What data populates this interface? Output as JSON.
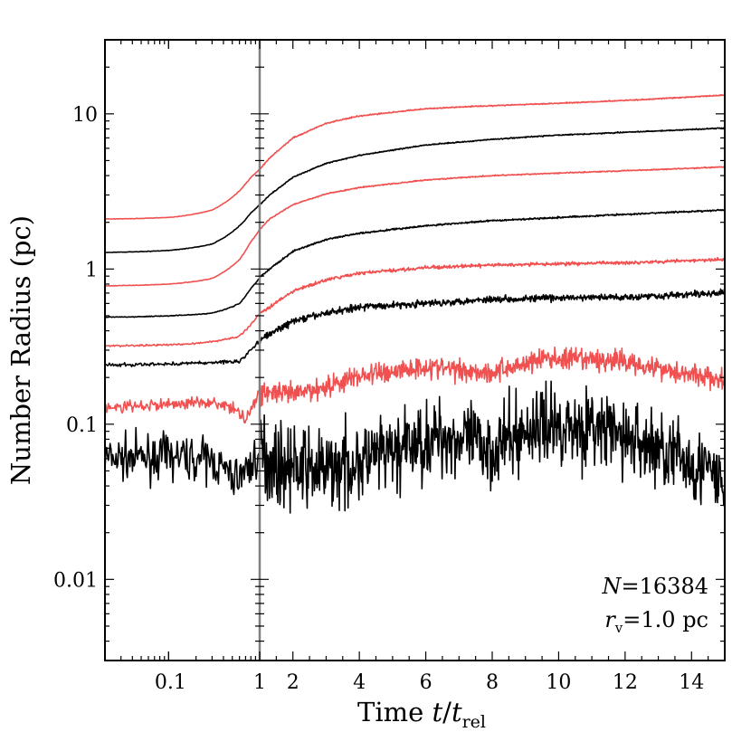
{
  "chart_data": {
    "type": "line",
    "title": "",
    "xlabel": {
      "prefix": "Time ",
      "t": "t",
      "slash": "/",
      "t2": "t",
      "sub": "rel"
    },
    "ylabel": "Number Radius (pc)",
    "x_scale": "log (t < 1), linear (t ≥ 1)",
    "xlim": [
      0.02,
      15
    ],
    "ylim": [
      0.003,
      30
    ],
    "y_scale": "log",
    "x_ticks_log": [
      {
        "v": 0.1,
        "label": "0.1"
      },
      {
        "v": 1,
        "label": "1"
      }
    ],
    "x_ticks_lin": [
      {
        "v": 2,
        "label": "2"
      },
      {
        "v": 4,
        "label": "4"
      },
      {
        "v": 6,
        "label": "6"
      },
      {
        "v": 8,
        "label": "8"
      },
      {
        "v": 10,
        "label": "10"
      },
      {
        "v": 12,
        "label": "12"
      },
      {
        "v": 14,
        "label": "14"
      }
    ],
    "y_ticks": [
      {
        "v": 0.01,
        "label": "0.01"
      },
      {
        "v": 0.1,
        "label": "0.1"
      },
      {
        "v": 1,
        "label": "1"
      },
      {
        "v": 10,
        "label": "10"
      }
    ],
    "vertical_line_at": 1,
    "annotation": {
      "n_label": "N",
      "n_eq": "=",
      "n_value": "16384",
      "r_label": "r",
      "r_sub": "v",
      "r_eq": "=",
      "r_value": "1.0 pc"
    },
    "series": [
      {
        "name": "r1",
        "color": "#000000",
        "noise": 0.28,
        "pts": [
          [
            0.02,
            0.06
          ],
          [
            0.1,
            0.062
          ],
          [
            0.3,
            0.058
          ],
          [
            0.5,
            0.045
          ],
          [
            0.7,
            0.05
          ],
          [
            1,
            0.066
          ],
          [
            1.5,
            0.055
          ],
          [
            3,
            0.05
          ],
          [
            5,
            0.065
          ],
          [
            6.5,
            0.085
          ],
          [
            8,
            0.07
          ],
          [
            9.5,
            0.1
          ],
          [
            11,
            0.095
          ],
          [
            13,
            0.07
          ],
          [
            14.5,
            0.05
          ],
          [
            15,
            0.038
          ]
        ]
      },
      {
        "name": "r2",
        "color": "#f05050",
        "noise": 0.08,
        "pts": [
          [
            0.02,
            0.128
          ],
          [
            0.1,
            0.135
          ],
          [
            0.3,
            0.14
          ],
          [
            0.5,
            0.125
          ],
          [
            0.7,
            0.11
          ],
          [
            1,
            0.16
          ],
          [
            1.3,
            0.16
          ],
          [
            2,
            0.155
          ],
          [
            3,
            0.175
          ],
          [
            4,
            0.205
          ],
          [
            6,
            0.235
          ],
          [
            8,
            0.215
          ],
          [
            9.5,
            0.265
          ],
          [
            12,
            0.255
          ],
          [
            13.5,
            0.22
          ],
          [
            15,
            0.19
          ]
        ]
      },
      {
        "name": "r3",
        "color": "#000000",
        "noise": 0.025,
        "pts": [
          [
            0.02,
            0.24
          ],
          [
            0.1,
            0.245
          ],
          [
            0.3,
            0.25
          ],
          [
            0.6,
            0.255
          ],
          [
            0.8,
            0.3
          ],
          [
            1,
            0.35
          ],
          [
            1.3,
            0.38
          ],
          [
            2,
            0.46
          ],
          [
            3,
            0.52
          ],
          [
            4,
            0.57
          ],
          [
            6,
            0.6
          ],
          [
            8,
            0.64
          ],
          [
            10,
            0.65
          ],
          [
            12,
            0.66
          ],
          [
            15,
            0.7
          ]
        ]
      },
      {
        "name": "r4",
        "color": "#f05050",
        "noise": 0.012,
        "pts": [
          [
            0.02,
            0.32
          ],
          [
            0.1,
            0.325
          ],
          [
            0.3,
            0.34
          ],
          [
            0.6,
            0.37
          ],
          [
            0.8,
            0.44
          ],
          [
            1,
            0.52
          ],
          [
            1.3,
            0.57
          ],
          [
            2,
            0.72
          ],
          [
            3,
            0.85
          ],
          [
            4,
            0.94
          ],
          [
            6,
            1.02
          ],
          [
            8,
            1.06
          ],
          [
            10,
            1.08
          ],
          [
            12,
            1.1
          ],
          [
            15,
            1.15
          ]
        ]
      },
      {
        "name": "r5",
        "color": "#000000",
        "noise": 0.006,
        "pts": [
          [
            0.02,
            0.49
          ],
          [
            0.1,
            0.5
          ],
          [
            0.3,
            0.52
          ],
          [
            0.6,
            0.6
          ],
          [
            0.8,
            0.75
          ],
          [
            1,
            0.88
          ],
          [
            1.3,
            1.0
          ],
          [
            2,
            1.3
          ],
          [
            3,
            1.55
          ],
          [
            4,
            1.7
          ],
          [
            6,
            1.9
          ],
          [
            8,
            2.05
          ],
          [
            10,
            2.15
          ],
          [
            12,
            2.25
          ],
          [
            15,
            2.4
          ]
        ]
      },
      {
        "name": "r6",
        "color": "#f05050",
        "noise": 0.004,
        "pts": [
          [
            0.02,
            0.78
          ],
          [
            0.1,
            0.8
          ],
          [
            0.3,
            0.87
          ],
          [
            0.6,
            1.15
          ],
          [
            0.8,
            1.5
          ],
          [
            1,
            1.8
          ],
          [
            1.3,
            2.1
          ],
          [
            2,
            2.6
          ],
          [
            3,
            3.05
          ],
          [
            4,
            3.35
          ],
          [
            6,
            3.75
          ],
          [
            8,
            4.0
          ],
          [
            10,
            4.15
          ],
          [
            12,
            4.3
          ],
          [
            15,
            4.55
          ]
        ]
      },
      {
        "name": "r7",
        "color": "#000000",
        "noise": 0.004,
        "pts": [
          [
            0.02,
            1.28
          ],
          [
            0.1,
            1.32
          ],
          [
            0.3,
            1.45
          ],
          [
            0.6,
            1.9
          ],
          [
            0.8,
            2.3
          ],
          [
            1,
            2.6
          ],
          [
            1.3,
            3.0
          ],
          [
            2,
            3.9
          ],
          [
            3,
            4.8
          ],
          [
            4,
            5.4
          ],
          [
            6,
            6.3
          ],
          [
            8,
            6.85
          ],
          [
            10,
            7.3
          ],
          [
            12,
            7.6
          ],
          [
            15,
            8.1
          ]
        ]
      },
      {
        "name": "r8",
        "color": "#f05050",
        "noise": 0.004,
        "pts": [
          [
            0.02,
            2.1
          ],
          [
            0.1,
            2.15
          ],
          [
            0.3,
            2.4
          ],
          [
            0.6,
            3.2
          ],
          [
            0.8,
            3.9
          ],
          [
            1,
            4.4
          ],
          [
            1.3,
            5.2
          ],
          [
            2,
            7.0
          ],
          [
            3,
            8.7
          ],
          [
            4,
            9.7
          ],
          [
            6,
            10.8
          ],
          [
            8,
            11.3
          ],
          [
            10,
            11.7
          ],
          [
            12,
            12.2
          ],
          [
            15,
            13.2
          ]
        ]
      }
    ]
  }
}
